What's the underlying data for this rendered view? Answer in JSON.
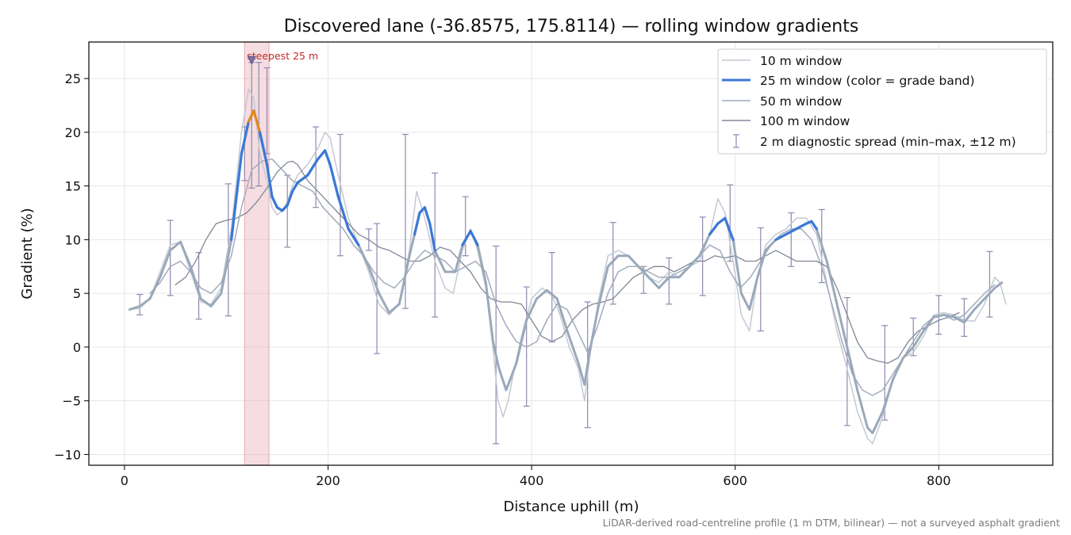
{
  "colors": {
    "w10": "#c3c9d3",
    "w25_band_blue": "#3a78d6",
    "w25_band_orange": "#e08a1c",
    "w25_base": "#9aa9ba",
    "w50": "#a2abbd",
    "w100": "#808897",
    "errbar": "#9088b0",
    "steep_fill": "#e6aab4",
    "steep_text": "#c42a2a",
    "grid": "#e6e6e6",
    "footnote": "#7a7a7a"
  },
  "chart_data": {
    "type": "line",
    "title": "Discovered lane (-36.8575, 175.8114) — rolling window gradients",
    "xlabel": "Distance uphill (m)",
    "ylabel": "Gradient (%)",
    "xlim": [
      -35,
      912
    ],
    "ylim": [
      -11,
      28.4
    ],
    "xticks": [
      0,
      200,
      400,
      600,
      800
    ],
    "yticks": [
      -10,
      -5,
      0,
      5,
      10,
      15,
      20,
      25
    ],
    "grid": true,
    "legend_position": "top-right",
    "footnote": "LiDAR-derived road-centreline profile (1 m DTM, bilinear) — not a surveyed asphalt gradient",
    "steepest_annotation": {
      "label": "steepest 25 m",
      "x_start": 118,
      "x_end": 142,
      "marker_x": 125,
      "marker_y": 26.7
    },
    "series": [
      {
        "name": "10 m window",
        "x": [
          5,
          15,
          25,
          35,
          45,
          55,
          65,
          75,
          85,
          95,
          105,
          115,
          122,
          127,
          133,
          140,
          145,
          150,
          155,
          160,
          165,
          170,
          180,
          190,
          197,
          202,
          210,
          220,
          230,
          240,
          250,
          260,
          270,
          280,
          287,
          295,
          305,
          315,
          323,
          332,
          340,
          347,
          355,
          362,
          367,
          372,
          377,
          382,
          390,
          400,
          410,
          420,
          428,
          437,
          446,
          452,
          457,
          465,
          475,
          485,
          495,
          505,
          515,
          525,
          535,
          545,
          555,
          565,
          575,
          583,
          590,
          598,
          606,
          614,
          622,
          630,
          640,
          650,
          660,
          670,
          680,
          690,
          700,
          710,
          720,
          730,
          735,
          745,
          755,
          765,
          775,
          785,
          795,
          805,
          815,
          825,
          835,
          845,
          855,
          860,
          866
        ],
        "values": [
          3.5,
          3.6,
          4.5,
          7.0,
          9.5,
          9.8,
          7.0,
          4.2,
          4.0,
          5.5,
          11.0,
          20.0,
          24.0,
          23.2,
          18.0,
          15.5,
          13.0,
          12.3,
          12.7,
          13.5,
          15.0,
          16.0,
          17.0,
          18.5,
          20.0,
          19.5,
          16.0,
          12.0,
          9.5,
          7.0,
          4.0,
          3.0,
          4.0,
          9.0,
          14.5,
          12.0,
          8.0,
          5.5,
          5.0,
          9.0,
          11.0,
          9.0,
          5.5,
          0.0,
          -5.0,
          -6.5,
          -5.0,
          -2.5,
          1.0,
          4.5,
          5.5,
          4.8,
          3.0,
          0.0,
          -2.0,
          -5.0,
          -1.0,
          4.0,
          8.5,
          9.0,
          8.5,
          7.5,
          6.5,
          6.0,
          7.0,
          6.5,
          7.5,
          8.0,
          10.5,
          13.8,
          12.5,
          8.0,
          3.0,
          1.5,
          6.5,
          9.5,
          10.5,
          11.0,
          12.0,
          12.0,
          10.5,
          6.0,
          1.5,
          -2.0,
          -6.0,
          -8.5,
          -9.0,
          -6.5,
          -3.0,
          -1.0,
          -0.5,
          1.0,
          3.0,
          3.2,
          3.0,
          2.5,
          2.4,
          4.0,
          6.5,
          6.0,
          4.0
        ]
      },
      {
        "name": "25 m window (color = grade band)",
        "x": [
          5,
          15,
          25,
          35,
          45,
          55,
          65,
          75,
          85,
          95,
          105,
          115,
          122,
          127,
          133,
          140,
          145,
          150,
          155,
          160,
          165,
          170,
          180,
          190,
          197,
          202,
          210,
          220,
          230,
          240,
          250,
          260,
          270,
          280,
          285,
          290,
          295,
          300,
          305,
          315,
          325,
          332,
          340,
          347,
          355,
          362,
          368,
          375,
          385,
          395,
          405,
          415,
          425,
          435,
          446,
          452,
          457,
          465,
          475,
          485,
          495,
          505,
          515,
          525,
          535,
          545,
          555,
          565,
          575,
          583,
          590,
          598,
          606,
          614,
          622,
          630,
          640,
          650,
          660,
          670,
          675,
          680,
          690,
          700,
          710,
          720,
          730,
          735,
          745,
          755,
          765,
          775,
          785,
          795,
          805,
          815,
          825,
          835,
          845,
          855,
          862
        ],
        "values": [
          3.5,
          3.8,
          4.5,
          6.5,
          9.0,
          9.8,
          7.5,
          4.5,
          3.8,
          5.0,
          10.0,
          18.0,
          21.0,
          22.0,
          20.0,
          17.0,
          14.0,
          13.0,
          12.7,
          13.2,
          14.5,
          15.3,
          16.0,
          17.5,
          18.3,
          17.0,
          14.0,
          11.0,
          9.5,
          7.5,
          5.0,
          3.2,
          4.0,
          8.5,
          10.5,
          12.5,
          13.0,
          11.5,
          9.0,
          7.0,
          7.0,
          9.5,
          10.8,
          9.5,
          6.0,
          0.5,
          -2.0,
          -4.0,
          -1.5,
          2.5,
          4.5,
          5.3,
          4.5,
          1.5,
          -1.5,
          -3.5,
          -0.5,
          3.5,
          7.5,
          8.5,
          8.5,
          7.5,
          6.5,
          5.5,
          6.5,
          6.5,
          7.5,
          8.5,
          10.5,
          11.5,
          12.0,
          10.0,
          5.0,
          3.5,
          6.5,
          9.0,
          10.0,
          10.5,
          11.0,
          11.5,
          11.7,
          11.0,
          8.0,
          4.0,
          0.0,
          -4.0,
          -7.5,
          -8.0,
          -6.0,
          -3.0,
          -1.0,
          0.0,
          1.5,
          2.8,
          3.0,
          2.8,
          2.3,
          3.5,
          4.5,
          5.5,
          6.0
        ]
      },
      {
        "name": "50 m window",
        "x": [
          25,
          35,
          45,
          55,
          65,
          75,
          85,
          95,
          105,
          115,
          125,
          135,
          145,
          155,
          165,
          175,
          185,
          195,
          205,
          215,
          225,
          235,
          245,
          255,
          265,
          275,
          285,
          295,
          305,
          315,
          325,
          335,
          345,
          355,
          365,
          375,
          385,
          395,
          405,
          415,
          425,
          435,
          445,
          455,
          465,
          475,
          485,
          495,
          505,
          515,
          525,
          535,
          545,
          555,
          565,
          575,
          585,
          595,
          605,
          615,
          625,
          635,
          645,
          655,
          665,
          675,
          685,
          695,
          705,
          715,
          725,
          735,
          745,
          755,
          765,
          775,
          785,
          795,
          805,
          815,
          825,
          835,
          845,
          855
        ],
        "values": [
          5.0,
          6.0,
          7.5,
          8.0,
          7.0,
          5.5,
          5.0,
          6.0,
          8.5,
          13.0,
          16.5,
          17.3,
          17.5,
          16.5,
          15.5,
          15.0,
          14.5,
          13.0,
          12.0,
          11.0,
          9.5,
          8.5,
          7.0,
          6.0,
          5.5,
          6.5,
          8.0,
          9.0,
          8.5,
          8.0,
          7.0,
          7.5,
          8.0,
          7.0,
          4.0,
          2.0,
          0.5,
          0.0,
          0.5,
          2.5,
          4.0,
          3.5,
          1.5,
          -0.5,
          2.0,
          5.0,
          7.0,
          7.5,
          7.5,
          7.0,
          6.5,
          6.5,
          7.0,
          7.5,
          8.5,
          9.5,
          9.0,
          7.0,
          5.5,
          6.5,
          8.0,
          9.5,
          10.5,
          11.0,
          11.0,
          10.0,
          7.5,
          4.0,
          0.5,
          -2.5,
          -4.0,
          -4.5,
          -4.0,
          -2.5,
          -1.0,
          0.5,
          2.0,
          2.8,
          3.0,
          2.5,
          3.0,
          4.0,
          5.0,
          5.8
        ]
      },
      {
        "name": "100 m window",
        "x": [
          50,
          60,
          70,
          80,
          90,
          100,
          110,
          120,
          130,
          140,
          150,
          160,
          165,
          170,
          180,
          190,
          200,
          210,
          220,
          230,
          240,
          250,
          260,
          270,
          280,
          290,
          300,
          310,
          320,
          330,
          340,
          350,
          360,
          370,
          380,
          390,
          400,
          410,
          420,
          430,
          440,
          450,
          460,
          470,
          480,
          490,
          500,
          510,
          520,
          530,
          540,
          550,
          560,
          570,
          580,
          590,
          600,
          610,
          620,
          630,
          640,
          650,
          660,
          670,
          680,
          690,
          700,
          710,
          720,
          730,
          740,
          750,
          760,
          770,
          780,
          790,
          800,
          810,
          820
        ],
        "values": [
          5.8,
          6.5,
          8.0,
          10.0,
          11.5,
          11.8,
          12.0,
          12.5,
          13.5,
          14.8,
          16.3,
          17.2,
          17.3,
          17.0,
          15.5,
          14.5,
          13.5,
          12.5,
          11.5,
          10.5,
          10.0,
          9.3,
          9.0,
          8.5,
          8.0,
          8.0,
          8.5,
          9.3,
          9.0,
          8.0,
          7.0,
          5.5,
          4.5,
          4.2,
          4.2,
          4.0,
          2.5,
          1.0,
          0.5,
          1.0,
          2.5,
          3.5,
          4.0,
          4.2,
          4.5,
          5.5,
          6.5,
          7.0,
          7.5,
          7.5,
          7.0,
          7.5,
          8.0,
          8.0,
          8.5,
          8.3,
          8.5,
          8.0,
          8.0,
          8.5,
          9.0,
          8.5,
          8.0,
          8.0,
          8.0,
          7.5,
          5.5,
          3.0,
          0.5,
          -1.0,
          -1.3,
          -1.5,
          -1.0,
          0.5,
          1.5,
          2.0,
          2.5,
          2.8,
          3.2
        ]
      },
      {
        "name": "2 m diagnostic spread (min–max, ±12 m)",
        "x": [
          15,
          45,
          73,
          102,
          118,
          125,
          132,
          140,
          160,
          188,
          212,
          240,
          248,
          276,
          305,
          335,
          365,
          395,
          420,
          455,
          480,
          510,
          535,
          568,
          595,
          625,
          655,
          685,
          710,
          747,
          775,
          800,
          825,
          850
        ],
        "low": [
          3.0,
          4.8,
          2.6,
          2.9,
          15.5,
          14.8,
          15.0,
          18.0,
          9.3,
          13.0,
          8.5,
          9.0,
          -0.6,
          3.6,
          2.8,
          8.5,
          -9.0,
          -5.5,
          0.5,
          -7.5,
          4.0,
          5.0,
          4.0,
          4.8,
          8.0,
          1.5,
          7.5,
          6.0,
          -7.3,
          -6.8,
          -0.8,
          1.2,
          1.0,
          2.8
        ],
        "high": [
          4.9,
          11.8,
          8.8,
          15.2,
          20.5,
          26.5,
          26.5,
          26.0,
          16.0,
          20.5,
          19.8,
          11.0,
          11.5,
          19.8,
          16.2,
          14.0,
          9.4,
          5.6,
          8.8,
          4.2,
          11.6,
          7.5,
          8.3,
          12.1,
          15.1,
          11.1,
          12.5,
          12.8,
          4.6,
          2.0,
          2.7,
          4.8,
          4.5,
          8.9
        ]
      }
    ]
  }
}
